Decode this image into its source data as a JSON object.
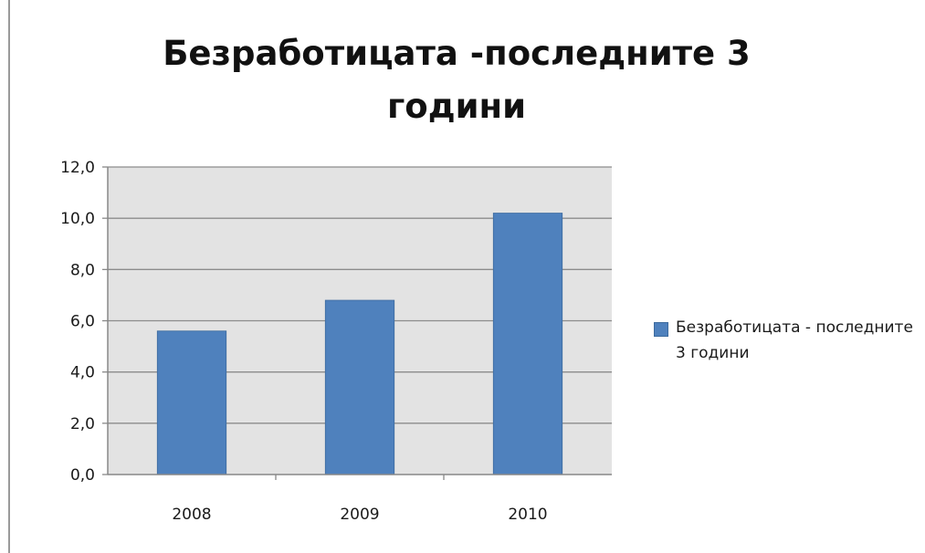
{
  "chart_data": {
    "type": "bar",
    "title": "Безработицата -последните 3 години",
    "categories": [
      "2008",
      "2009",
      "2010"
    ],
    "series": [
      {
        "name": "Безработицата - последните 3 години",
        "values": [
          5.6,
          6.8,
          10.2
        ],
        "color": "#4f81bd"
      }
    ],
    "ylim": [
      0,
      12
    ],
    "yticks": [
      "0,0",
      "2,0",
      "4,0",
      "6,0",
      "8,0",
      "10,0",
      "12,0"
    ],
    "grid": true,
    "plot_background": "#e3e3e3",
    "legend_position": "right"
  }
}
